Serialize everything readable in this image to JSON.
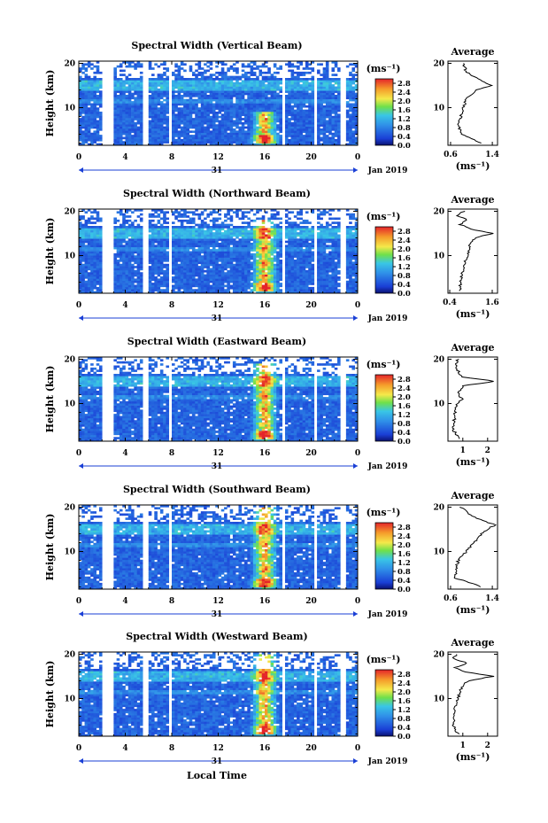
{
  "figure": {
    "xlabel": "Local Time",
    "day_label": "31",
    "month_label": "Jan 2019",
    "ylabel": "Height (km)",
    "colorbar_unit": "(ms⁻¹)",
    "colorbar_ticks": [
      "2.8",
      "2.4",
      "2.0",
      "1.6",
      "1.2",
      "0.8",
      "0.4",
      "0.0"
    ],
    "avg_title": "Average",
    "avg_unit": "(ms⁻¹)",
    "x_ticks": [
      "0",
      "4",
      "8",
      "12",
      "16",
      "20",
      "0"
    ],
    "y_ticks": [
      "20",
      "10"
    ],
    "colors": {
      "low": "#1a3fd6",
      "mid": "#39c6e6",
      "green": "#6fe04a",
      "yellow": "#f5e94a",
      "orange": "#f59a2a",
      "red": "#e4242a",
      "axis": "#000000",
      "blue_line": "#1a3fd6"
    }
  },
  "chart_data": [
    {
      "type": "heatmap",
      "title": "Spectral Width (Vertical Beam)",
      "xlabel": "Local Time",
      "ylabel": "Height (km)",
      "x_range": [
        0,
        24
      ],
      "y_range": [
        1.5,
        20.5
      ],
      "color_range": [
        0.0,
        3.0
      ],
      "gaps_hours": [
        2.3,
        2.7,
        5.8,
        7.9,
        17.6,
        20.4,
        22.8
      ],
      "enhancement": {
        "hour": 16,
        "heights_km": [
          2,
          9
        ],
        "peak": 2.8
      },
      "average_profile": {
        "x_ticks": [
          "0.6",
          "1.4"
        ],
        "xlim": [
          0.55,
          1.5
        ],
        "heights_km": [
          2,
          4,
          6,
          8,
          10,
          12,
          14,
          15,
          16,
          18,
          20
        ],
        "values": [
          1.2,
          0.8,
          0.75,
          0.8,
          0.85,
          0.9,
          1.1,
          1.4,
          1.2,
          0.9,
          0.85
        ]
      }
    },
    {
      "type": "heatmap",
      "title": "Spectral Width (Northward Beam)",
      "xlabel": "Local Time",
      "ylabel": "Height (km)",
      "x_range": [
        0,
        24
      ],
      "y_range": [
        1.5,
        20.5
      ],
      "color_range": [
        0.0,
        3.0
      ],
      "gaps_hours": [
        2.3,
        2.7,
        5.8,
        7.9,
        17.6,
        20.4,
        22.8
      ],
      "enhancement": {
        "hour": 16,
        "heights_km": [
          2,
          18
        ],
        "peak": 2.8
      },
      "average_profile": {
        "x_ticks": [
          "0.4",
          "1.6"
        ],
        "xlim": [
          0.35,
          1.75
        ],
        "heights_km": [
          2,
          4,
          6,
          8,
          10,
          12,
          14,
          15,
          16,
          17,
          18,
          19,
          20
        ],
        "values": [
          0.7,
          0.7,
          0.75,
          0.8,
          0.9,
          0.95,
          1.1,
          1.6,
          1.0,
          0.7,
          0.9,
          0.6,
          0.8
        ]
      }
    },
    {
      "type": "heatmap",
      "title": "Spectral Width (Eastward Beam)",
      "xlabel": "Local Time",
      "ylabel": "Height (km)",
      "x_range": [
        0,
        24
      ],
      "y_range": [
        1.5,
        20.5
      ],
      "color_range": [
        0.0,
        3.0
      ],
      "gaps_hours": [
        2.3,
        2.7,
        5.8,
        7.9,
        17.6,
        20.4,
        22.8
      ],
      "enhancement": {
        "hour": 16,
        "heights_km": [
          2,
          19
        ],
        "peak": 2.8
      },
      "average_profile": {
        "x_ticks": [
          "1",
          "2"
        ],
        "xlim": [
          0.4,
          2.4
        ],
        "heights_km": [
          2,
          4,
          6,
          8,
          10,
          11,
          12,
          14,
          15,
          16,
          18,
          20
        ],
        "values": [
          0.9,
          0.6,
          0.65,
          0.7,
          0.75,
          1.0,
          0.8,
          1.0,
          2.3,
          1.0,
          0.7,
          0.8
        ]
      }
    },
    {
      "type": "heatmap",
      "title": "Spectral Width (Southward Beam)",
      "xlabel": "Local Time",
      "ylabel": "Height (km)",
      "x_range": [
        0,
        24
      ],
      "y_range": [
        1.5,
        20.5
      ],
      "color_range": [
        0.0,
        3.0
      ],
      "gaps_hours": [
        2.3,
        2.7,
        5.8,
        7.9,
        17.6,
        20.4,
        22.8
      ],
      "enhancement": {
        "hour": 16,
        "heights_km": [
          2,
          20
        ],
        "peak": 2.8
      },
      "average_profile": {
        "x_ticks": [
          "0.6",
          "1.4"
        ],
        "xlim": [
          0.55,
          1.5
        ],
        "heights_km": [
          2,
          4,
          6,
          8,
          10,
          12,
          14,
          15,
          16,
          18,
          20
        ],
        "values": [
          1.2,
          0.7,
          0.7,
          0.75,
          0.9,
          1.05,
          1.2,
          1.3,
          1.45,
          1.0,
          0.8
        ]
      }
    },
    {
      "type": "heatmap",
      "title": "Spectral Width (Westward Beam)",
      "xlabel": "Local Time",
      "ylabel": "Height (km)",
      "x_range": [
        0,
        24
      ],
      "y_range": [
        1.5,
        20.5
      ],
      "color_range": [
        0.0,
        3.0
      ],
      "gaps_hours": [
        2.3,
        2.7,
        5.8,
        7.9,
        17.6,
        20.4,
        22.8
      ],
      "enhancement": {
        "hour": 16,
        "heights_km": [
          2,
          20
        ],
        "peak": 2.8
      },
      "average_profile": {
        "x_ticks": [
          "1",
          "2"
        ],
        "xlim": [
          0.4,
          2.4
        ],
        "heights_km": [
          2,
          4,
          6,
          8,
          10,
          12,
          14,
          15,
          16,
          17,
          18,
          19,
          20
        ],
        "values": [
          0.8,
          0.6,
          0.65,
          0.7,
          0.8,
          0.9,
          1.2,
          2.2,
          1.1,
          0.7,
          1.2,
          0.6,
          0.8
        ]
      }
    }
  ]
}
